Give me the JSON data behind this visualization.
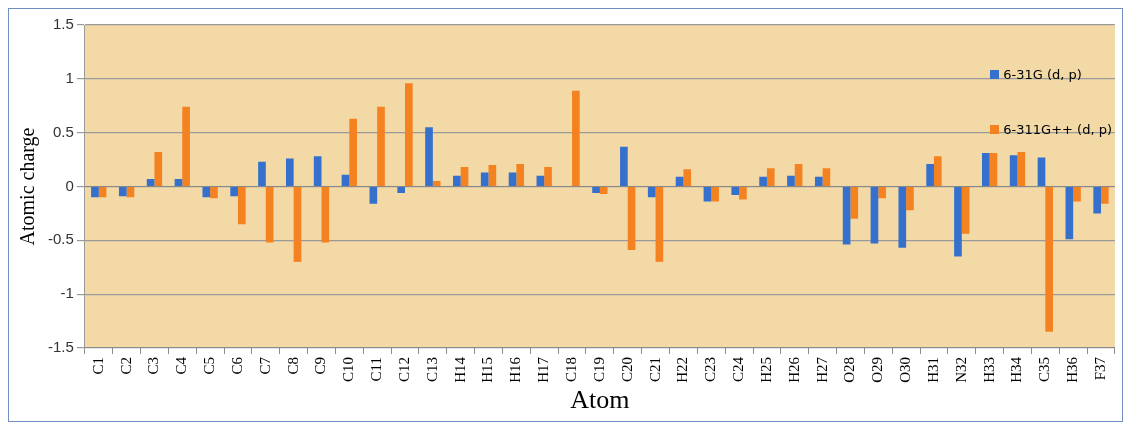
{
  "chart_data": {
    "type": "bar",
    "xlabel": "Atom",
    "ylabel": "Atomic charge",
    "categories": [
      "C1",
      "C2",
      "C3",
      "C4",
      "C5",
      "C6",
      "C7",
      "C8",
      "C9",
      "C10",
      "C11",
      "C12",
      "C13",
      "H14",
      "H15",
      "H16",
      "H17",
      "C18",
      "C19",
      "C20",
      "C21",
      "H22",
      "C23",
      "C24",
      "H25",
      "H26",
      "H27",
      "O28",
      "O29",
      "O30",
      "H31",
      "N32",
      "H33",
      "H34",
      "C35",
      "H36",
      "F37"
    ],
    "series": [
      {
        "name": "6-31G (d, p)",
        "color": "#3470cc",
        "values": [
          -0.1,
          -0.09,
          0.07,
          0.07,
          -0.1,
          -0.09,
          0.23,
          0.26,
          0.28,
          0.11,
          -0.16,
          -0.06,
          0.55,
          0.1,
          0.13,
          0.13,
          0.1,
          0,
          -0.06,
          0.37,
          -0.1,
          0.09,
          -0.14,
          -0.08,
          0.09,
          0.1,
          0.09,
          -0.54,
          -0.53,
          -0.57,
          0.21,
          -0.65,
          0.31,
          0.29,
          0.27,
          -0.49,
          -0.25
        ]
      },
      {
        "name": "6-311G++ (d, p)",
        "color": "#f58220",
        "values": [
          -0.1,
          -0.1,
          0.32,
          0.74,
          -0.11,
          -0.35,
          -0.52,
          -0.7,
          -0.52,
          0.63,
          0.74,
          0.96,
          0.05,
          0.18,
          0.2,
          0.21,
          0.18,
          0.89,
          -0.07,
          -0.59,
          -0.7,
          0.16,
          -0.14,
          -0.12,
          0.17,
          0.21,
          0.17,
          -0.3,
          -0.11,
          -0.22,
          0.28,
          -0.44,
          0.31,
          0.32,
          -1.35,
          -0.14,
          -0.16
        ]
      }
    ],
    "ylim": [
      -1.5,
      1.5
    ],
    "yticks": [
      -1.5,
      -1,
      -0.5,
      0,
      0.5,
      1,
      1.5
    ],
    "grid": "y",
    "legend": "top right"
  }
}
